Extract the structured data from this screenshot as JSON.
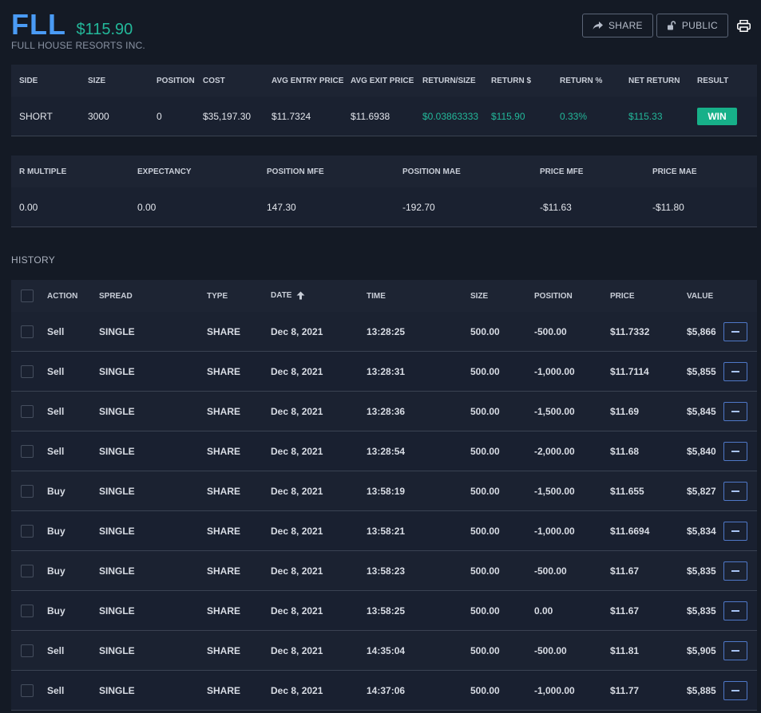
{
  "header": {
    "symbol": "FLL",
    "pnl": "$115.90",
    "company": "FULL HOUSE RESORTS INC.",
    "share_label": "SHARE",
    "public_label": "PUBLIC"
  },
  "summary": {
    "columns": [
      "SIDE",
      "SIZE",
      "POSITION",
      "COST",
      "AVG ENTRY PRICE",
      "AVG EXIT PRICE",
      "RETURN/SIZE",
      "RETURN $",
      "RETURN %",
      "NET RETURN",
      "RESULT"
    ],
    "values": [
      "SHORT",
      "3000",
      "0",
      "$35,197.30",
      "$11.7324",
      "$11.6938",
      "$0.03863333",
      "$115.90",
      "0.33%",
      "$115.33",
      "WIN"
    ]
  },
  "metrics": {
    "columns": [
      "R MULTIPLE",
      "EXPECTANCY",
      "POSITION MFE",
      "POSITION MAE",
      "PRICE MFE",
      "PRICE MAE"
    ],
    "values": [
      "0.00",
      "0.00",
      "147.30",
      "-192.70",
      "-$11.63",
      "-$11.80"
    ]
  },
  "history": {
    "title": "HISTORY",
    "columns": [
      "ACTION",
      "SPREAD",
      "TYPE",
      "DATE",
      "TIME",
      "SIZE",
      "POSITION",
      "PRICE",
      "VALUE"
    ],
    "rows": [
      [
        "Sell",
        "SINGLE",
        "SHARE",
        "Dec 8, 2021",
        "13:28:25",
        "500.00",
        "-500.00",
        "$11.7332",
        "$5,866"
      ],
      [
        "Sell",
        "SINGLE",
        "SHARE",
        "Dec 8, 2021",
        "13:28:31",
        "500.00",
        "-1,000.00",
        "$11.7114",
        "$5,855"
      ],
      [
        "Sell",
        "SINGLE",
        "SHARE",
        "Dec 8, 2021",
        "13:28:36",
        "500.00",
        "-1,500.00",
        "$11.69",
        "$5,845"
      ],
      [
        "Sell",
        "SINGLE",
        "SHARE",
        "Dec 8, 2021",
        "13:28:54",
        "500.00",
        "-2,000.00",
        "$11.68",
        "$5,840"
      ],
      [
        "Buy",
        "SINGLE",
        "SHARE",
        "Dec 8, 2021",
        "13:58:19",
        "500.00",
        "-1,500.00",
        "$11.655",
        "$5,827"
      ],
      [
        "Buy",
        "SINGLE",
        "SHARE",
        "Dec 8, 2021",
        "13:58:21",
        "500.00",
        "-1,000.00",
        "$11.6694",
        "$5,834"
      ],
      [
        "Buy",
        "SINGLE",
        "SHARE",
        "Dec 8, 2021",
        "13:58:23",
        "500.00",
        "-500.00",
        "$11.67",
        "$5,835"
      ],
      [
        "Buy",
        "SINGLE",
        "SHARE",
        "Dec 8, 2021",
        "13:58:25",
        "500.00",
        "0.00",
        "$11.67",
        "$5,835"
      ],
      [
        "Sell",
        "SINGLE",
        "SHARE",
        "Dec 8, 2021",
        "14:35:04",
        "500.00",
        "-500.00",
        "$11.81",
        "$5,905"
      ],
      [
        "Sell",
        "SINGLE",
        "SHARE",
        "Dec 8, 2021",
        "14:37:06",
        "500.00",
        "-1,000.00",
        "$11.77",
        "$5,885"
      ]
    ]
  },
  "colors": {
    "accent_blue": "#4a9bf5",
    "positive_green": "#23b89a",
    "win_badge": "#17b089",
    "background": "#141a25"
  }
}
